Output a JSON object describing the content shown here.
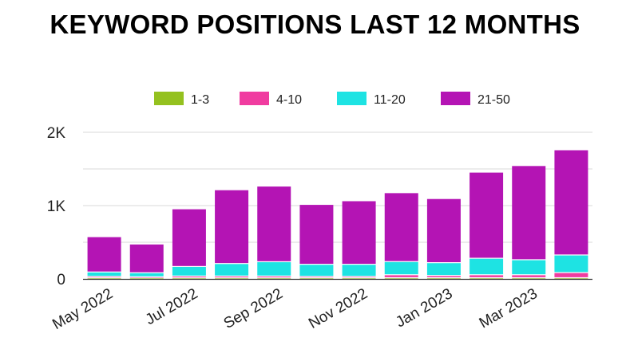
{
  "chart_data": {
    "type": "bar",
    "stacked": true,
    "title": "KEYWORD POSITIONS LAST 12 MONTHS",
    "categories": [
      "May 2022",
      "Jun 2022",
      "Jul 2022",
      "Aug 2022",
      "Sep 2022",
      "Oct 2022",
      "Nov 2022",
      "Dec 2022",
      "Jan 2023",
      "Feb 2023",
      "Mar 2023",
      "Apr 2023"
    ],
    "x_tick_labels": [
      "May 2022",
      "Jul 2022",
      "Sep 2022",
      "Nov 2022",
      "Jan 2023",
      "Mar 2023"
    ],
    "series": [
      {
        "name": "1-3",
        "color": "#94c11f",
        "values": [
          8,
          8,
          8,
          8,
          8,
          8,
          8,
          10,
          10,
          10,
          10,
          10
        ]
      },
      {
        "name": "4-10",
        "color": "#f03ca0",
        "values": [
          20,
          15,
          25,
          25,
          25,
          20,
          20,
          40,
          30,
          40,
          40,
          70
        ]
      },
      {
        "name": "11-20",
        "color": "#1ee3e3",
        "values": [
          60,
          55,
          130,
          170,
          195,
          165,
          165,
          180,
          175,
          225,
          205,
          240
        ]
      },
      {
        "name": "21-50",
        "color": "#b414b4",
        "values": [
          482,
          392,
          787,
          1007,
          1032,
          817,
          867,
          940,
          875,
          1175,
          1285,
          1435
        ]
      }
    ],
    "y_tick_labels": [
      "0",
      "1K",
      "2K"
    ],
    "ylim": [
      0,
      2000
    ],
    "grid": true,
    "legend_position": "top"
  }
}
